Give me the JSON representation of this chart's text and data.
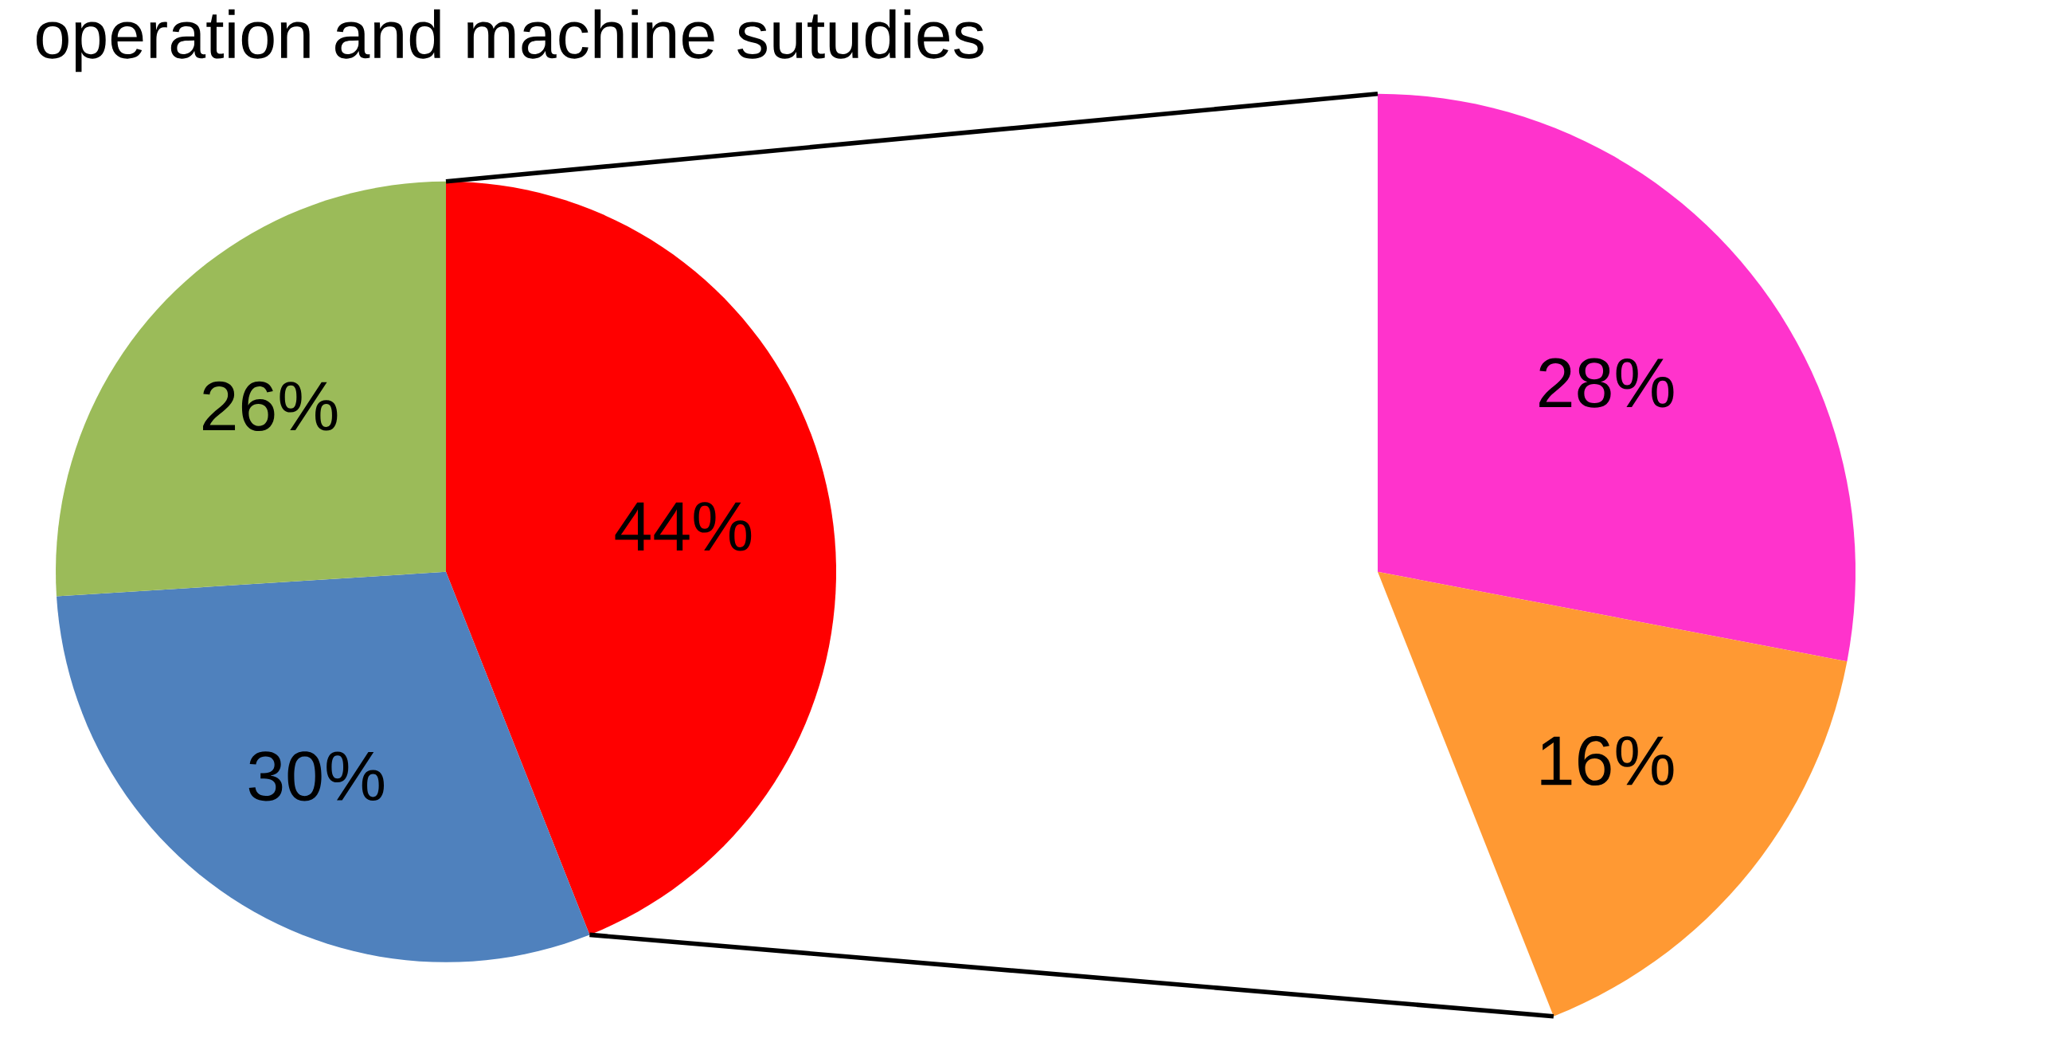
{
  "chart_data": [
    {
      "type": "pie",
      "title": "operation and machine sutudies",
      "categories": [
        null,
        null,
        null
      ],
      "values": [
        44,
        30,
        26
      ],
      "colors": [
        "#ff0000",
        "#4f81bd",
        "#9bbb59"
      ],
      "value_labels": [
        "44%",
        "30%",
        "26%"
      ]
    },
    {
      "type": "pie",
      "categories": [
        null,
        null
      ],
      "values": [
        28,
        16
      ],
      "colors": [
        "#ff33cc",
        "#ff9933"
      ],
      "value_labels": [
        "28%",
        "16%"
      ]
    }
  ]
}
